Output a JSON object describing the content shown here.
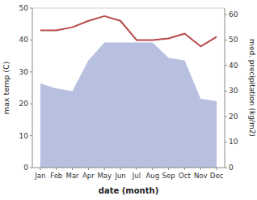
{
  "chart_data": {
    "type": "line",
    "x_label": "date (month)",
    "y_label": "max temp (C)",
    "y2_label": "med. precipitation (kg/m2)",
    "categories": [
      "Jan",
      "Feb",
      "Mar",
      "Apr",
      "May",
      "Jun",
      "Jul",
      "Aug",
      "Sep",
      "Oct",
      "Nov",
      "Dec"
    ],
    "series": [
      {
        "type": "area",
        "axis": "y2",
        "color": "#b8c0e0",
        "values": [
          33,
          31,
          30,
          42,
          49,
          49,
          49,
          49,
          43,
          42,
          27,
          26
        ]
      },
      {
        "type": "line",
        "color": "#b94a4a",
        "values": [
          43,
          43,
          44,
          46,
          47.5,
          46,
          40,
          40,
          40.5,
          42,
          38,
          41
        ]
      }
    ],
    "ylim": [
      0,
      50
    ],
    "yticks": [
      0,
      10,
      20,
      30,
      40,
      50
    ],
    "y2lim": [
      0,
      62.5
    ],
    "y2ticks": [
      0,
      10,
      20,
      30,
      40,
      50,
      60
    ],
    "grid": false
  }
}
